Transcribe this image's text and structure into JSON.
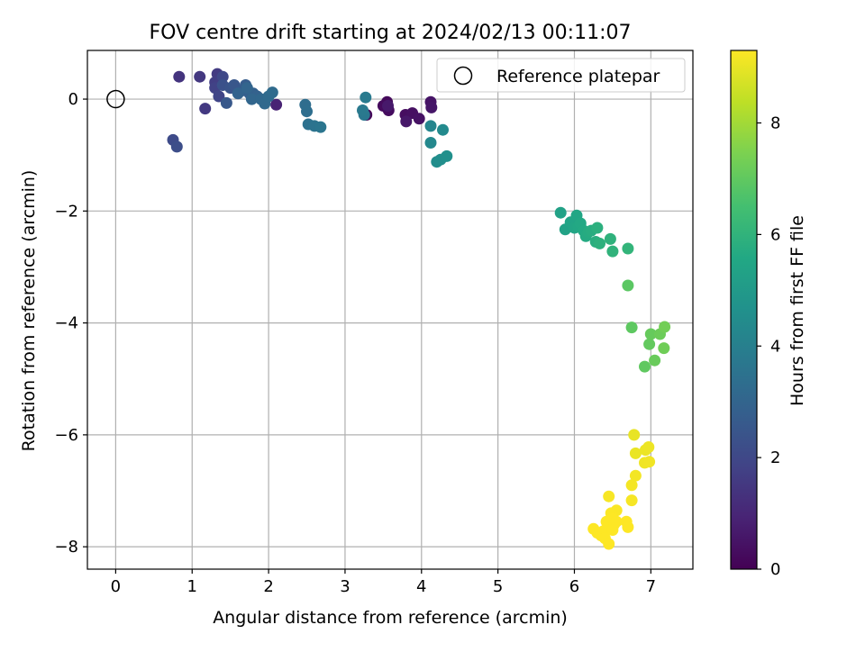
{
  "chart_data": {
    "type": "scatter",
    "title": "FOV centre drift starting at 2024/02/13 00:11:07",
    "xlabel": "Angular distance from reference (arcmin)",
    "ylabel": "Rotation from reference (arcmin)",
    "xlim": [
      -0.37,
      7.55
    ],
    "ylim": [
      -8.4,
      0.87
    ],
    "xticks": [
      "0",
      "1",
      "2",
      "3",
      "4",
      "5",
      "6",
      "7"
    ],
    "xtick_values": [
      0,
      1,
      2,
      3,
      4,
      5,
      6,
      7
    ],
    "yticks": [
      "0",
      "−2",
      "−4",
      "−6",
      "−8"
    ],
    "ytick_values": [
      0,
      -2,
      -4,
      -6,
      -8
    ],
    "grid": true,
    "legend": {
      "position": "top-right",
      "entries": [
        "Reference platepar"
      ]
    },
    "reference_point": {
      "x": 0,
      "y": 0
    },
    "colorbar": {
      "label": "Hours from first FF file",
      "range": [
        0,
        9.3
      ],
      "ticks": [
        "0",
        "2",
        "4",
        "6",
        "8"
      ],
      "tick_values": [
        0,
        2,
        4,
        6,
        8
      ],
      "colormap": "viridis"
    },
    "series": [
      {
        "points": [
          [
            3.28,
            -0.28,
            0.15
          ],
          [
            3.55,
            -0.05,
            0.2
          ],
          [
            3.5,
            -0.12,
            0.25
          ],
          [
            3.57,
            -0.2,
            0.3
          ],
          [
            3.79,
            -0.28,
            0.35
          ],
          [
            3.88,
            -0.25,
            0.4
          ],
          [
            3.97,
            -0.35,
            0.45
          ],
          [
            4.12,
            -0.05,
            0.5
          ],
          [
            4.13,
            -0.15,
            0.55
          ],
          [
            3.8,
            -0.4,
            0.6
          ],
          [
            3.56,
            -0.12,
            0.65
          ],
          [
            2.1,
            -0.1,
            0.9
          ],
          [
            0.83,
            0.4,
            1.4
          ],
          [
            1.1,
            0.4,
            1.5
          ],
          [
            1.17,
            -0.17,
            1.55
          ],
          [
            1.33,
            0.45,
            1.6
          ],
          [
            1.3,
            0.3,
            1.7
          ],
          [
            1.3,
            0.2,
            1.8
          ],
          [
            1.35,
            0.05,
            1.9
          ],
          [
            1.4,
            0.4,
            2.0
          ],
          [
            0.75,
            -0.73,
            2.1
          ],
          [
            0.8,
            -0.85,
            2.2
          ],
          [
            1.4,
            0.25,
            2.3
          ],
          [
            1.5,
            0.2,
            2.4
          ],
          [
            1.55,
            0.25,
            2.5
          ],
          [
            1.45,
            -0.07,
            2.55
          ],
          [
            1.65,
            0.15,
            2.6
          ],
          [
            1.7,
            0.25,
            2.7
          ],
          [
            1.75,
            0.1,
            2.8
          ],
          [
            1.8,
            0.1,
            2.85
          ],
          [
            1.85,
            0.05,
            2.9
          ],
          [
            1.6,
            0.1,
            2.95
          ],
          [
            1.72,
            0.2,
            3.0
          ],
          [
            1.78,
            0.0,
            3.05
          ],
          [
            1.9,
            0.0,
            3.1
          ],
          [
            1.95,
            -0.08,
            3.15
          ],
          [
            2.0,
            0.05,
            3.2
          ],
          [
            2.05,
            0.12,
            3.25
          ],
          [
            2.48,
            -0.1,
            3.3
          ],
          [
            2.5,
            -0.22,
            3.35
          ],
          [
            2.52,
            -0.45,
            3.45
          ],
          [
            2.6,
            -0.48,
            3.55
          ],
          [
            2.68,
            -0.5,
            3.6
          ],
          [
            3.25,
            -0.28,
            3.7
          ],
          [
            3.23,
            -0.2,
            3.75
          ],
          [
            3.27,
            0.03,
            3.8
          ],
          [
            4.12,
            -0.48,
            4.2
          ],
          [
            4.12,
            -0.78,
            4.3
          ],
          [
            4.28,
            -0.55,
            4.4
          ],
          [
            4.2,
            -1.12,
            4.5
          ],
          [
            4.25,
            -1.08,
            4.55
          ],
          [
            4.33,
            -1.02,
            4.6
          ],
          [
            5.82,
            -2.03,
            5.3
          ],
          [
            5.88,
            -2.33,
            5.35
          ],
          [
            5.95,
            -2.2,
            5.4
          ],
          [
            6.0,
            -2.3,
            5.45
          ],
          [
            6.03,
            -2.08,
            5.5
          ],
          [
            6.05,
            -2.28,
            5.55
          ],
          [
            6.08,
            -2.22,
            5.6
          ],
          [
            6.12,
            -2.35,
            5.62
          ],
          [
            6.15,
            -2.45,
            5.65
          ],
          [
            6.18,
            -2.38,
            5.7
          ],
          [
            6.22,
            -2.35,
            5.75
          ],
          [
            6.28,
            -2.55,
            5.8
          ],
          [
            6.3,
            -2.3,
            5.85
          ],
          [
            6.33,
            -2.58,
            5.9
          ],
          [
            6.47,
            -2.5,
            5.95
          ],
          [
            6.5,
            -2.72,
            6.0
          ],
          [
            6.7,
            -2.67,
            6.05
          ],
          [
            6.7,
            -3.33,
            6.9
          ],
          [
            6.75,
            -4.08,
            6.95
          ],
          [
            6.92,
            -4.78,
            7.0
          ],
          [
            6.98,
            -4.38,
            7.05
          ],
          [
            7.0,
            -4.2,
            7.1
          ],
          [
            7.05,
            -4.67,
            7.15
          ],
          [
            7.12,
            -4.2,
            7.2
          ],
          [
            7.17,
            -4.45,
            7.25
          ],
          [
            7.18,
            -4.07,
            7.3
          ],
          [
            6.78,
            -6.0,
            9.0
          ],
          [
            6.8,
            -6.33,
            9.02
          ],
          [
            6.93,
            -6.27,
            9.05
          ],
          [
            6.97,
            -6.22,
            9.07
          ],
          [
            6.92,
            -6.5,
            9.1
          ],
          [
            6.98,
            -6.48,
            9.12
          ],
          [
            6.8,
            -6.73,
            9.15
          ],
          [
            6.75,
            -6.9,
            9.17
          ],
          [
            6.75,
            -7.17,
            9.2
          ],
          [
            6.45,
            -7.1,
            9.22
          ],
          [
            6.55,
            -7.35,
            9.25
          ],
          [
            6.48,
            -7.4,
            9.27
          ],
          [
            6.42,
            -7.55,
            9.3
          ],
          [
            6.5,
            -7.5,
            9.3
          ],
          [
            6.52,
            -7.6,
            9.3
          ],
          [
            6.68,
            -7.55,
            9.3
          ],
          [
            6.7,
            -7.65,
            9.3
          ],
          [
            6.25,
            -7.68,
            9.3
          ],
          [
            6.3,
            -7.75,
            9.3
          ],
          [
            6.35,
            -7.8,
            9.3
          ],
          [
            6.38,
            -7.72,
            9.3
          ],
          [
            6.4,
            -7.85,
            9.3
          ],
          [
            6.45,
            -7.95,
            9.3
          ],
          [
            6.5,
            -7.7,
            9.3
          ],
          [
            6.55,
            -7.55,
            9.3
          ]
        ]
      }
    ]
  }
}
